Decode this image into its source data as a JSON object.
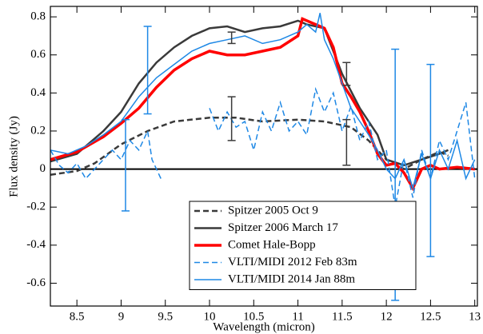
{
  "chart_data": {
    "type": "line",
    "xlabel": "Wavelength (micron)",
    "ylabel": "Flux density (Jy)",
    "xlim": [
      8.2,
      13.03
    ],
    "ylim": [
      -0.72,
      0.855
    ],
    "xticks": [
      8.5,
      9,
      9.5,
      10,
      10.5,
      11,
      11.5,
      12,
      12.5,
      13
    ],
    "yticks": [
      -0.6,
      -0.4,
      -0.2,
      0,
      0.2,
      0.4,
      0.6,
      0.8
    ],
    "legend": "lower center",
    "series": [
      {
        "name": "Spitzer 2005 Oct 9",
        "color": "#3a3a3a",
        "style": "dashed",
        "width": 2.5,
        "x": [
          8.2,
          8.5,
          8.7,
          9.0,
          9.3,
          9.6,
          10.0,
          10.3,
          10.6,
          11.0,
          11.3,
          11.6,
          11.8,
          12.0,
          12.2,
          12.4,
          12.6,
          12.7
        ],
        "values": [
          -0.03,
          -0.01,
          0.03,
          0.13,
          0.2,
          0.25,
          0.27,
          0.27,
          0.25,
          0.26,
          0.25,
          0.22,
          0.15,
          0.05,
          0.0,
          0.05,
          0.09,
          0.07
        ]
      },
      {
        "name": "Spitzer 2006 March 17",
        "color": "#3a3a3a",
        "style": "solid",
        "width": 2.5,
        "x": [
          8.2,
          8.5,
          8.8,
          9.0,
          9.2,
          9.4,
          9.6,
          9.8,
          10.0,
          10.2,
          10.4,
          10.6,
          10.8,
          11.0,
          11.1,
          11.3,
          11.4,
          11.5,
          11.7,
          11.9,
          12.0,
          12.2,
          12.4,
          12.6,
          12.7
        ],
        "values": [
          0.04,
          0.08,
          0.2,
          0.3,
          0.45,
          0.56,
          0.64,
          0.7,
          0.74,
          0.75,
          0.72,
          0.74,
          0.75,
          0.78,
          0.76,
          0.74,
          0.62,
          0.5,
          0.32,
          0.18,
          0.05,
          0.02,
          0.05,
          0.08,
          0.1
        ]
      },
      {
        "name": "Comet Hale-Bopp",
        "color": "#ff0000",
        "style": "solid",
        "width": 3.5,
        "x": [
          8.2,
          8.5,
          8.8,
          9.0,
          9.2,
          9.4,
          9.6,
          9.8,
          10.0,
          10.2,
          10.4,
          10.6,
          10.8,
          11.0,
          11.05,
          11.2,
          11.3,
          11.4,
          11.5,
          11.6,
          11.7,
          11.8,
          11.9,
          12.0,
          12.1,
          12.2,
          12.3,
          12.4,
          12.5,
          12.6,
          12.8,
          13.0
        ],
        "values": [
          0.05,
          0.09,
          0.17,
          0.24,
          0.32,
          0.43,
          0.52,
          0.58,
          0.62,
          0.6,
          0.6,
          0.62,
          0.64,
          0.7,
          0.79,
          0.76,
          0.74,
          0.64,
          0.45,
          0.38,
          0.3,
          0.2,
          0.08,
          0.02,
          0.03,
          -0.02,
          -0.1,
          0.0,
          0.02,
          0.0,
          0.01,
          0.0
        ]
      },
      {
        "name": "VLTI/MIDI 2012 Feb 83m",
        "color": "#1e88e5",
        "style": "dashed",
        "width": 1.5,
        "x": [
          8.2,
          8.3,
          8.4,
          8.5,
          8.6,
          8.7,
          8.8,
          8.9,
          9.0,
          9.1,
          9.2,
          9.3,
          9.35,
          9.45,
          9.7,
          10.0,
          10.1,
          10.2,
          10.3,
          10.4,
          10.5,
          10.6,
          10.7,
          10.8,
          10.9,
          11.0,
          11.1,
          11.2,
          11.3,
          11.4,
          11.5,
          11.6,
          11.7,
          11.8,
          11.9,
          12.0,
          12.1,
          12.2,
          12.3,
          12.4,
          12.5,
          12.6,
          12.7,
          12.8,
          12.9,
          13.0
        ],
        "values": [
          0.1,
          0.02,
          -0.02,
          0.03,
          -0.05,
          0.0,
          0.05,
          0.1,
          0.05,
          0.15,
          0.1,
          0.2,
          0.05,
          -0.05,
          null,
          0.32,
          0.2,
          0.3,
          0.22,
          0.25,
          0.1,
          0.3,
          0.2,
          0.35,
          0.2,
          0.25,
          0.18,
          0.42,
          0.3,
          0.4,
          0.2,
          0.33,
          0.15,
          0.25,
          0.05,
          0.1,
          -0.2,
          0.05,
          -0.15,
          0.1,
          -0.05,
          0.15,
          0.05,
          0.2,
          0.35,
          -0.05
        ]
      },
      {
        "name": "VLTI/MIDI 2014 Jan 88m",
        "color": "#1e88e5",
        "style": "solid",
        "width": 1.5,
        "x": [
          8.2,
          8.4,
          8.6,
          8.8,
          9.0,
          9.2,
          9.4,
          9.6,
          9.8,
          10.0,
          10.2,
          10.4,
          10.6,
          10.8,
          11.0,
          11.1,
          11.2,
          11.25,
          11.3,
          11.4,
          11.5,
          11.6,
          11.7,
          11.8,
          11.9,
          12.0,
          12.1,
          12.2,
          12.3,
          12.4,
          12.5,
          12.6,
          12.7,
          12.8,
          12.9,
          13.0
        ],
        "values": [
          0.1,
          0.08,
          0.12,
          0.18,
          0.25,
          0.38,
          0.48,
          0.55,
          0.62,
          0.66,
          0.68,
          0.7,
          0.66,
          0.68,
          0.72,
          0.76,
          0.72,
          0.82,
          0.68,
          0.58,
          0.45,
          0.32,
          0.25,
          0.18,
          0.1,
          0.0,
          -0.05,
          0.05,
          -0.1,
          0.08,
          -0.05,
          0.1,
          0.0,
          0.15,
          -0.05,
          0.05
        ]
      }
    ],
    "error_bars": [
      {
        "x": 10.25,
        "value": 0.265,
        "error": 0.115,
        "color": "#3a3a3a"
      },
      {
        "x": 10.25,
        "value": 0.69,
        "error": 0.03,
        "color": "#3a3a3a"
      },
      {
        "x": 11.55,
        "value": 0.14,
        "error": 0.12,
        "color": "#3a3a3a"
      },
      {
        "x": 11.55,
        "value": 0.5,
        "error": 0.06,
        "color": "#3a3a3a"
      },
      {
        "x": 9.05,
        "value": 0.02,
        "error": 0.24,
        "color": "#1e88e5"
      },
      {
        "x": 9.3,
        "value": 0.52,
        "error": 0.23,
        "color": "#1e88e5"
      },
      {
        "x": 12.1,
        "value": -0.03,
        "error": 0.66,
        "color": "#1e88e5"
      },
      {
        "x": 12.5,
        "value": 0.045,
        "error": 0.505,
        "color": "#1e88e5"
      }
    ]
  }
}
